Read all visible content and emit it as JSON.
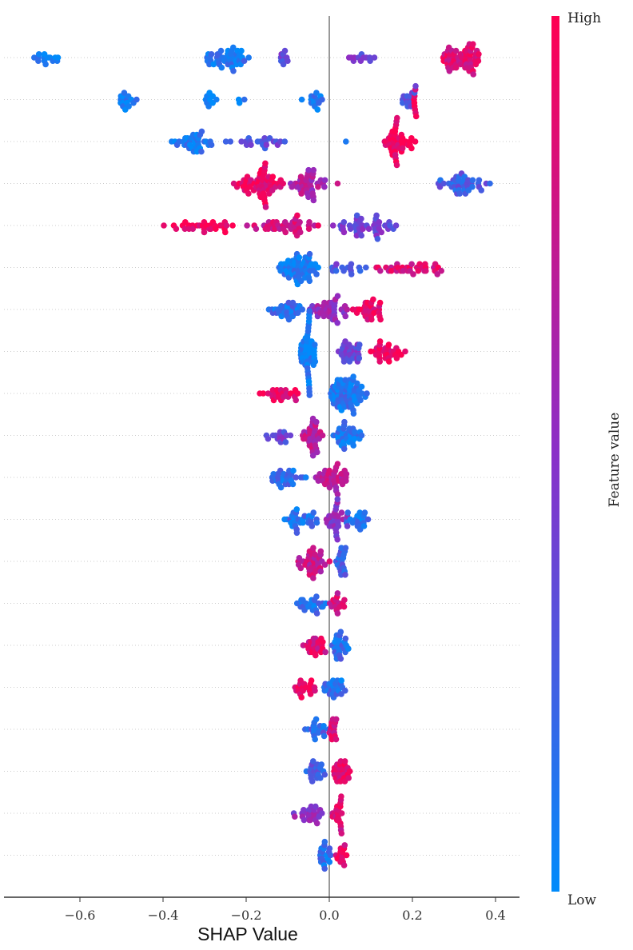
{
  "chart_data": {
    "type": "scatter",
    "subtype": "shap-beeswarm",
    "title": "",
    "xlabel": "SHAP Value",
    "ylabel": "",
    "xlim": [
      -0.78,
      0.46
    ],
    "xticks": [
      -0.6,
      -0.4,
      -0.2,
      0.0,
      0.2,
      0.4
    ],
    "xtick_labels": [
      "−0.6",
      "−0.4",
      "−0.2",
      "0.0",
      "0.2",
      "0.4"
    ],
    "grid": "dotted row lines",
    "colorbar": {
      "label": "Feature value",
      "high_label": "High",
      "low_label": "Low",
      "high_color": "#ff0052",
      "mid_color": "#8a2fc8",
      "low_color": "#008bfb"
    },
    "cluster_format": [
      "shap_min",
      "shap_max",
      "feature_value_0_to_1",
      "count"
    ],
    "rows": [
      {
        "clusters": [
          [
            -0.73,
            -0.64,
            0.05,
            14
          ],
          [
            -0.31,
            -0.18,
            0.1,
            45
          ],
          [
            -0.14,
            -0.08,
            0.35,
            10
          ],
          [
            0.02,
            0.12,
            0.4,
            12
          ],
          [
            0.27,
            0.37,
            0.85,
            60
          ]
        ]
      },
      {
        "clusters": [
          [
            -0.52,
            -0.46,
            0.05,
            16
          ],
          [
            -0.32,
            -0.26,
            0.08,
            10
          ],
          [
            -0.22,
            -0.2,
            0.05,
            3
          ],
          [
            -0.08,
            0.0,
            0.1,
            14
          ],
          [
            0.17,
            0.21,
            0.3,
            14
          ],
          [
            0.2,
            0.21,
            0.9,
            8
          ]
        ]
      },
      {
        "clusters": [
          [
            -0.38,
            -0.27,
            0.08,
            35
          ],
          [
            -0.25,
            -0.07,
            0.35,
            22
          ],
          [
            0.04,
            0.04,
            0.1,
            1
          ],
          [
            0.12,
            0.21,
            0.95,
            45
          ]
        ]
      },
      {
        "clusters": [
          [
            -0.24,
            -0.1,
            0.92,
            60
          ],
          [
            -0.1,
            0.0,
            0.65,
            40
          ],
          [
            0.02,
            0.02,
            0.7,
            1
          ],
          [
            0.25,
            0.4,
            0.25,
            40
          ]
        ]
      },
      {
        "clusters": [
          [
            -0.43,
            -0.2,
            0.95,
            30
          ],
          [
            -0.2,
            0.0,
            0.8,
            40
          ],
          [
            0.0,
            0.17,
            0.4,
            45
          ]
        ]
      },
      {
        "clusters": [
          [
            -0.13,
            -0.02,
            0.08,
            60
          ],
          [
            -0.02,
            0.1,
            0.3,
            15
          ],
          [
            0.1,
            0.3,
            0.85,
            35
          ]
        ]
      },
      {
        "clusters": [
          [
            -0.16,
            -0.05,
            0.15,
            30
          ],
          [
            -0.05,
            0.05,
            0.55,
            40
          ],
          [
            0.05,
            0.14,
            0.9,
            30
          ]
        ]
      },
      {
        "clusters": [
          [
            -0.08,
            -0.03,
            0.05,
            55
          ],
          [
            0.01,
            0.08,
            0.4,
            30
          ],
          [
            0.08,
            0.19,
            0.92,
            30
          ]
        ]
      },
      {
        "clusters": [
          [
            -0.18,
            -0.07,
            0.93,
            25
          ],
          [
            -0.02,
            0.1,
            0.12,
            70
          ]
        ]
      },
      {
        "clusters": [
          [
            -0.17,
            -0.08,
            0.4,
            15
          ],
          [
            -0.07,
            -0.01,
            0.7,
            35
          ],
          [
            0.0,
            0.1,
            0.1,
            35
          ]
        ]
      },
      {
        "clusters": [
          [
            -0.16,
            -0.05,
            0.15,
            30
          ],
          [
            -0.04,
            0.06,
            0.7,
            40
          ]
        ]
      },
      {
        "clusters": [
          [
            -0.12,
            -0.02,
            0.15,
            30
          ],
          [
            -0.02,
            0.05,
            0.5,
            30
          ],
          [
            0.03,
            0.1,
            0.12,
            20
          ]
        ]
      },
      {
        "clusters": [
          [
            -0.08,
            0.01,
            0.75,
            40
          ],
          [
            0.01,
            0.05,
            0.25,
            20
          ]
        ]
      },
      {
        "clusters": [
          [
            -0.08,
            0.0,
            0.15,
            25
          ],
          [
            0.0,
            0.04,
            0.8,
            15
          ]
        ]
      },
      {
        "clusters": [
          [
            -0.07,
            0.0,
            0.85,
            25
          ],
          [
            0.0,
            0.05,
            0.15,
            25
          ]
        ]
      },
      {
        "clusters": [
          [
            -0.09,
            -0.02,
            0.92,
            20
          ],
          [
            -0.02,
            0.04,
            0.15,
            25
          ]
        ]
      },
      {
        "clusters": [
          [
            -0.06,
            0.0,
            0.2,
            20
          ],
          [
            0.0,
            0.02,
            0.85,
            15
          ]
        ]
      },
      {
        "clusters": [
          [
            -0.06,
            0.0,
            0.25,
            20
          ],
          [
            0.0,
            0.06,
            0.9,
            25
          ]
        ]
      },
      {
        "clusters": [
          [
            -0.09,
            0.0,
            0.5,
            25
          ],
          [
            0.0,
            0.04,
            0.85,
            20
          ]
        ]
      },
      {
        "clusters": [
          [
            -0.03,
            0.01,
            0.15,
            20
          ],
          [
            0.01,
            0.05,
            0.9,
            15
          ]
        ]
      }
    ]
  }
}
